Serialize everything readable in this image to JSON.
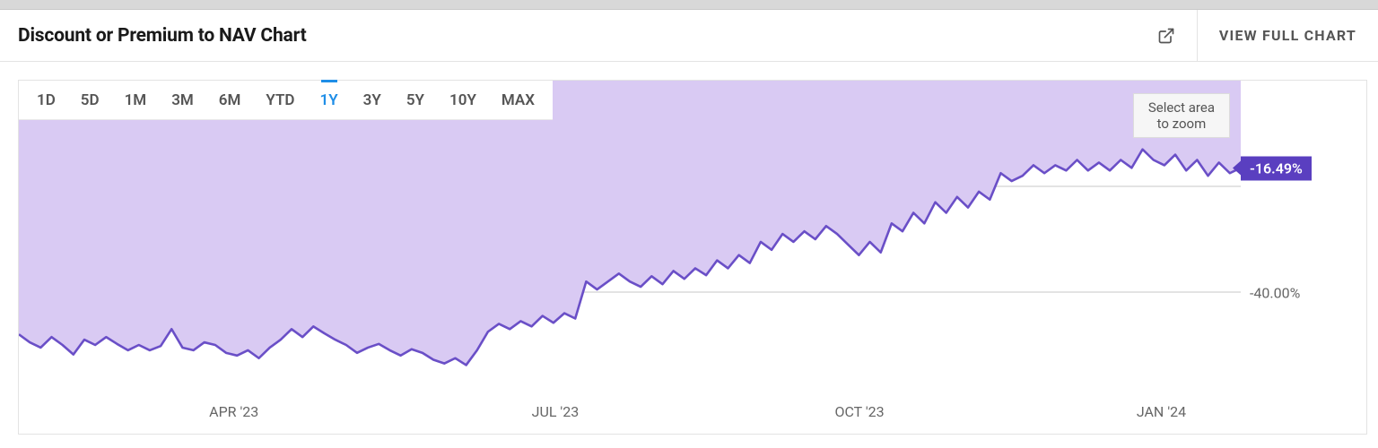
{
  "header": {
    "title": "Discount or Premium to NAV Chart",
    "full_chart_label": "VIEW FULL CHART"
  },
  "zoom_tip": {
    "line1": "Select area",
    "line2": "to zoom"
  },
  "range_tabs": {
    "items": [
      "1D",
      "5D",
      "1M",
      "3M",
      "6M",
      "YTD",
      "1Y",
      "3Y",
      "5Y",
      "10Y",
      "MAX"
    ],
    "active_index": 6,
    "active_color": "#1f8ee7",
    "inactive_color": "#555555"
  },
  "chart": {
    "type": "area",
    "line_color": "#6a4fc7",
    "fill_color": "#d9caf3",
    "line_width": 2.6,
    "background_color": "#ffffff",
    "grid_color": "#e3e3e3",
    "ylim": [
      -60,
      0
    ],
    "y_ticks": [
      {
        "value": -40,
        "label": "-40.00%"
      }
    ],
    "end_badge": {
      "value": -16.49,
      "label": "-16.49%",
      "bg": "#5a3fc0",
      "fg": "#ffffff"
    },
    "x_ticks": [
      {
        "x": 0.176,
        "label": "APR '23"
      },
      {
        "x": 0.439,
        "label": "JUL '23"
      },
      {
        "x": 0.688,
        "label": "OCT '23"
      },
      {
        "x": 0.935,
        "label": "JAN '24"
      }
    ],
    "series": [
      -48.0,
      -49.5,
      -50.5,
      -48.5,
      -50.0,
      -51.8,
      -49.0,
      -50.0,
      -48.5,
      -49.8,
      -51.0,
      -50.0,
      -51.0,
      -50.2,
      -47.0,
      -50.5,
      -51.0,
      -49.5,
      -50.0,
      -51.5,
      -52.0,
      -51.0,
      -52.5,
      -50.5,
      -49.0,
      -47.0,
      -48.5,
      -46.5,
      -47.8,
      -49.0,
      -50.0,
      -51.5,
      -50.5,
      -49.8,
      -51.0,
      -52.0,
      -50.8,
      -51.5,
      -52.8,
      -53.5,
      -52.5,
      -53.8,
      -51.0,
      -47.5,
      -46.0,
      -47.0,
      -45.5,
      -46.5,
      -44.5,
      -45.8,
      -44.0,
      -45.0,
      -38.0,
      -39.5,
      -38.0,
      -36.5,
      -38.0,
      -39.0,
      -37.0,
      -38.5,
      -36.0,
      -37.5,
      -35.5,
      -36.8,
      -34.0,
      -35.5,
      -33.0,
      -34.5,
      -30.5,
      -32.0,
      -29.0,
      -30.5,
      -28.5,
      -30.0,
      -27.5,
      -29.0,
      -31.0,
      -33.0,
      -30.5,
      -32.5,
      -27.0,
      -28.5,
      -25.0,
      -27.0,
      -23.0,
      -25.0,
      -22.0,
      -24.0,
      -21.0,
      -22.5,
      -17.5,
      -19.0,
      -18.0,
      -16.0,
      -17.5,
      -16.0,
      -17.0,
      -15.0,
      -17.0,
      -15.5,
      -17.0,
      -15.0,
      -16.5,
      -13.0,
      -15.0,
      -16.0,
      -14.0,
      -17.0,
      -15.0,
      -18.0,
      -15.5,
      -17.5,
      -16.49
    ]
  }
}
